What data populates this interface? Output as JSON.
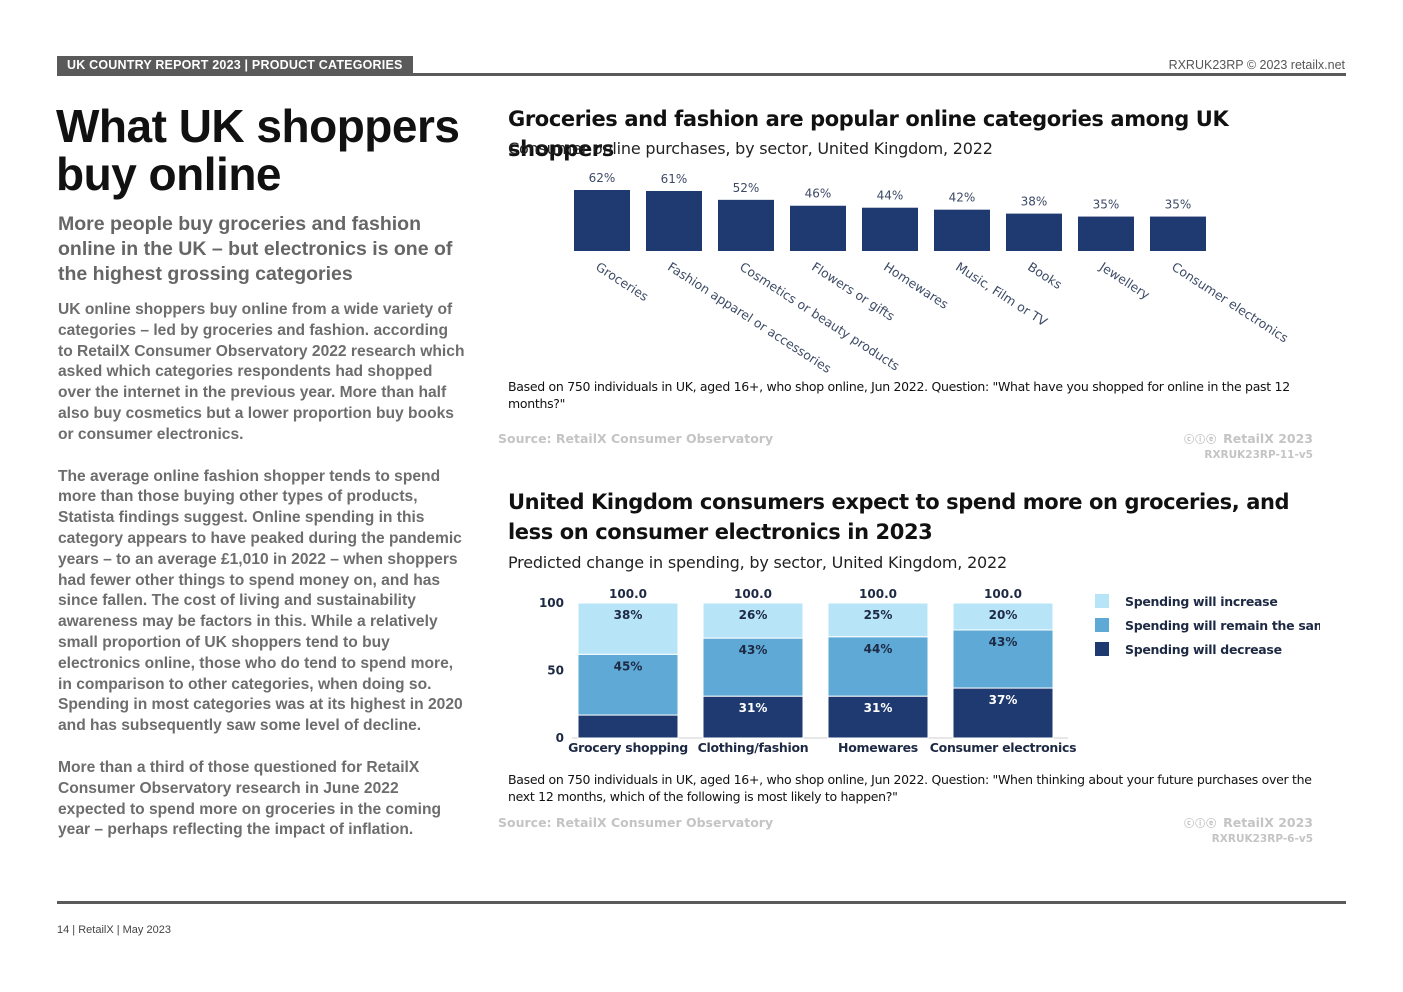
{
  "header": {
    "tag": "UK COUNTRY REPORT 2023 | PRODUCT CATEGORIES",
    "code": "RXRUK23RP © 2023 retailx.net"
  },
  "page": {
    "title": "What UK shoppers buy online",
    "subtitle": "More people buy groceries and fashion online in the UK – but electronics is one of the highest grossing categories",
    "paragraphs": [
      "UK online shoppers buy online from a wide variety of categories – led by groceries and fashion. according to RetailX Consumer Observatory 2022 research which asked which categories respondents had shopped over the internet in the previous year. More than half also buy cosmetics but a lower proportion buy books or consumer electronics.",
      "The average online fashion shopper tends to spend more than those buying other types of products, Statista findings suggest. Online spending in this category appears to have peaked during the pandemic years – to an average £1,010 in 2022 – when shoppers had fewer other things to spend money on, and has since fallen. The cost of living and sustainability awareness may be factors in this. While a relatively small proportion of UK shoppers tend to buy electronics online, those who do tend to spend more, in comparison to other categories, when doing so. Spending in most categories was at its highest in 2020 and has subsequently saw some level of decline.",
      "More than a third of those questioned for RetailX Consumer Observatory research in June 2022 expected to spend more on groceries in the coming year – perhaps reflecting the impact of inflation."
    ]
  },
  "chart1": {
    "title": "Groceries and fashion are popular online categories among UK shoppers",
    "subtitle": "Consumer online purchases, by sector, United Kingdom, 2022",
    "note": "Based on 750 individuals in UK, aged 16+, who shop online, Jun 2022. Question: \"What have you shopped for online in the past 12 months?\"",
    "source": "Source: RetailX Consumer Observatory",
    "credit": "RetailX 2023",
    "code": "RXRUK23RP-11-v5"
  },
  "chart2": {
    "title": "United Kingdom consumers expect to spend more on groceries, and less on consumer electronics in 2023",
    "subtitle": "Predicted change in spending, by sector, United Kingdom, 2022",
    "note": "Based on 750 individuals in UK, aged 16+, who shop online, Jun 2022. Question: \"When thinking about your future purchases over the next 12 months, which of the following is most likely to happen?\"",
    "source": "Source: RetailX Consumer Observatory",
    "credit": "RetailX 2023",
    "code": "RXRUK23RP-6-v5"
  },
  "cc_icons": "ⓒⓘⓔ",
  "chart_data": [
    {
      "type": "bar",
      "title": "Groceries and fashion are popular online categories among UK shoppers",
      "subtitle": "Consumer online purchases, by sector, United Kingdom, 2022",
      "categories": [
        "Groceries",
        "Fashion apparel or accessories",
        "Cosmetics or beauty products",
        "Flowers or gifts",
        "Homewares",
        "Music, Film or TV",
        "Books",
        "Jewellery",
        "Consumer electronics"
      ],
      "values": [
        62,
        61,
        52,
        46,
        44,
        42,
        38,
        35,
        35
      ],
      "value_labels": [
        "62%",
        "61%",
        "52%",
        "46%",
        "44%",
        "42%",
        "38%",
        "35%",
        "35%"
      ],
      "color": "#1f3a70",
      "ylim": [
        0,
        62
      ]
    },
    {
      "type": "bar",
      "stacked": true,
      "title": "United Kingdom consumers expect to spend more on groceries, and less on consumer electronics in 2023",
      "subtitle": "Predicted change in spending, by sector, United Kingdom, 2022",
      "categories": [
        "Grocery shopping",
        "Clothing/fashion",
        "Homewares",
        "Consumer electronics"
      ],
      "totals": [
        100.0,
        100.0,
        100.0,
        100.0
      ],
      "total_labels": [
        "100.0",
        "100.0",
        "100.0",
        "100.0"
      ],
      "yticks": [
        "0",
        "50",
        "100"
      ],
      "ylim": [
        0,
        100
      ],
      "series": [
        {
          "name": "Spending will decrease",
          "color": "#1f3a70",
          "values": [
            17,
            31,
            31,
            37
          ],
          "labels": [
            "",
            "31%",
            "31%",
            "37%"
          ]
        },
        {
          "name": "Spending will remain the same",
          "color": "#5ea9d6",
          "values": [
            45,
            43,
            44,
            43
          ],
          "labels": [
            "45%",
            "43%",
            "44%",
            "43%"
          ]
        },
        {
          "name": "Spending will increase",
          "color": "#b8e4f8",
          "values": [
            38,
            26,
            25,
            20
          ],
          "labels": [
            "38%",
            "26%",
            "25%",
            "20%"
          ]
        }
      ],
      "legend_position": "right"
    }
  ],
  "footer": {
    "text": "14 | RetailX | May 2023"
  }
}
